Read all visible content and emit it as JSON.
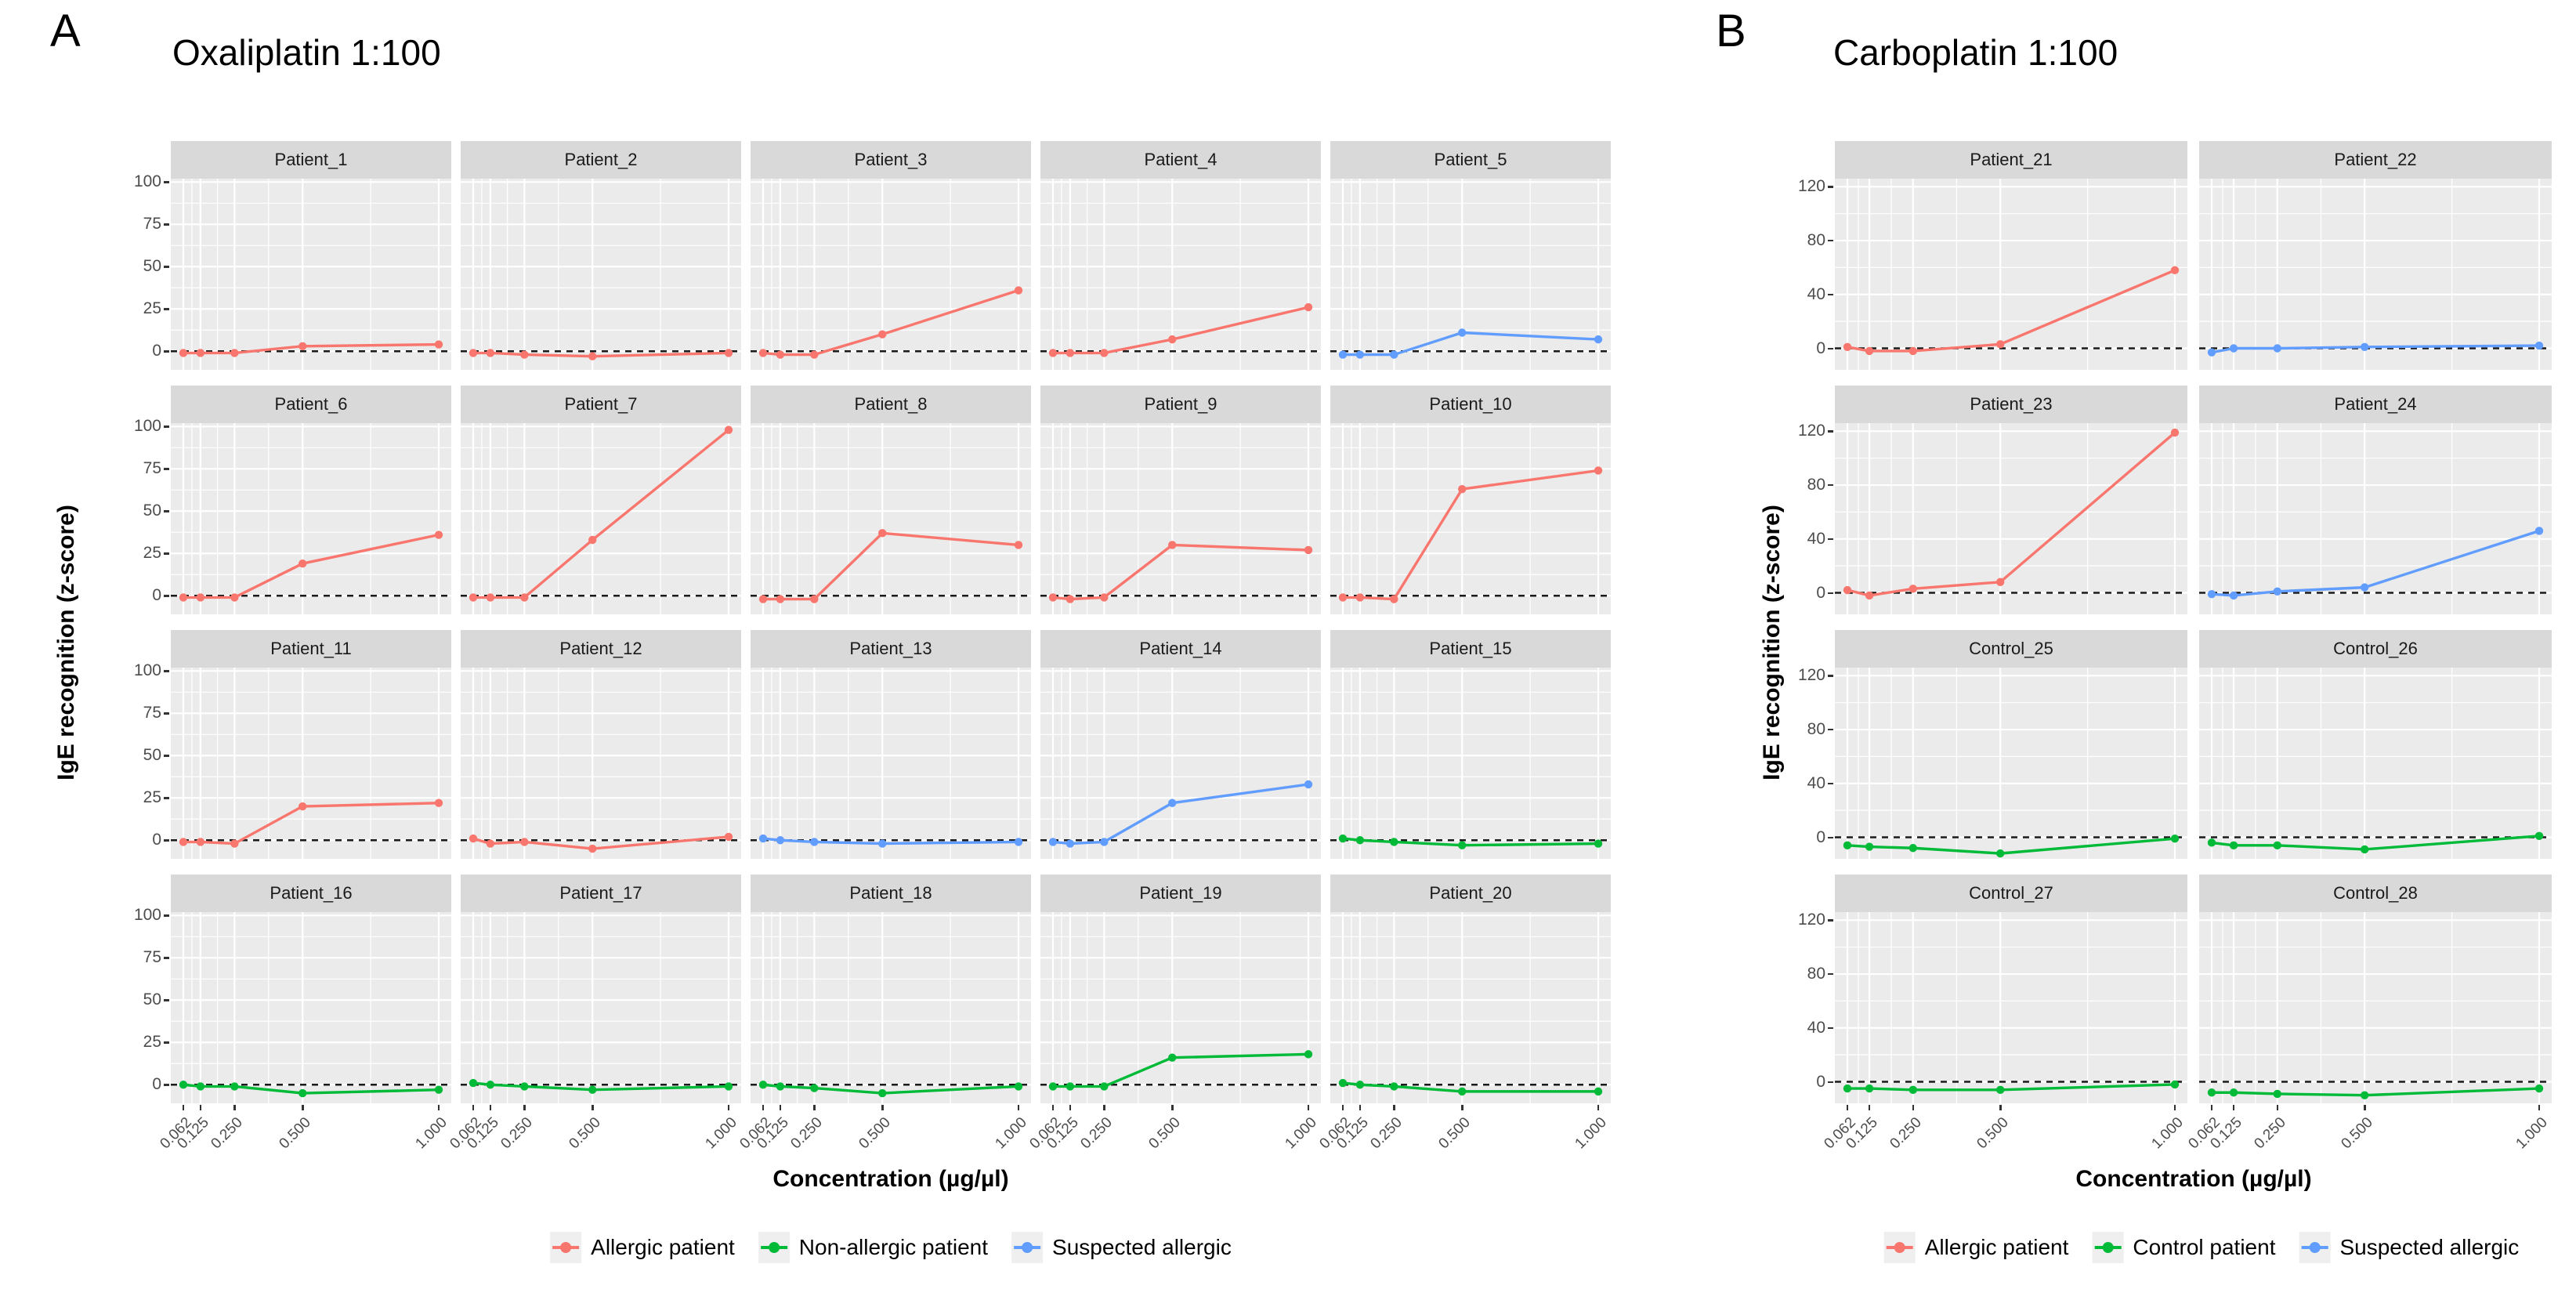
{
  "figure": {
    "panel_letters": [
      "A",
      "B"
    ]
  },
  "colors": {
    "allergic": "#F8766D",
    "non_allergic": "#00BA38",
    "suspected": "#619CFF",
    "zero_line": "#1a1a1a",
    "panel_bg": "#EBEBEB",
    "strip_bg": "#D9D9D9",
    "grid_line": "#FFFFFF",
    "tick_text": "#4d4d4d"
  },
  "chart_data": [
    {
      "type": "line",
      "panel_letter": "A",
      "title": "Oxaliplatin 1:100",
      "xlabel": "Concentration (µg/µl)",
      "ylabel": "IgE recognition (z-score)",
      "x": [
        0.062,
        0.125,
        0.25,
        0.5,
        1.0
      ],
      "x_tick_labels": [
        "0.062",
        "0.125",
        "0.250",
        "0.500",
        "1.000"
      ],
      "y_ticks": [
        0,
        25,
        50,
        75,
        100
      ],
      "y_minor": [
        12.5,
        37.5,
        62.5,
        87.5
      ],
      "ylim": [
        -11,
        102
      ],
      "grid": "on",
      "legend_position": "bottom",
      "zero_line": 0,
      "facet_cols": 5,
      "facets": [
        {
          "name": "Patient_1",
          "group": "allergic",
          "values": [
            -1,
            -1,
            -1,
            3,
            4
          ]
        },
        {
          "name": "Patient_2",
          "group": "allergic",
          "values": [
            -1,
            -1,
            -2,
            -3,
            -1
          ]
        },
        {
          "name": "Patient_3",
          "group": "allergic",
          "values": [
            -1,
            -2,
            -2,
            10,
            36
          ]
        },
        {
          "name": "Patient_4",
          "group": "allergic",
          "values": [
            -1,
            -1,
            -1,
            7,
            26
          ]
        },
        {
          "name": "Patient_5",
          "group": "suspected",
          "values": [
            -2,
            -2,
            -2,
            11,
            7
          ]
        },
        {
          "name": "Patient_6",
          "group": "allergic",
          "values": [
            -1,
            -1,
            -1,
            19,
            36
          ]
        },
        {
          "name": "Patient_7",
          "group": "allergic",
          "values": [
            -1,
            -1,
            -1,
            33,
            98
          ]
        },
        {
          "name": "Patient_8",
          "group": "allergic",
          "values": [
            -2,
            -2,
            -2,
            37,
            30
          ]
        },
        {
          "name": "Patient_9",
          "group": "allergic",
          "values": [
            -1,
            -2,
            -1,
            30,
            27
          ]
        },
        {
          "name": "Patient_10",
          "group": "allergic",
          "values": [
            -1,
            -1,
            -2,
            63,
            74
          ]
        },
        {
          "name": "Patient_11",
          "group": "allergic",
          "values": [
            -1,
            -1,
            -2,
            20,
            22
          ]
        },
        {
          "name": "Patient_12",
          "group": "allergic",
          "values": [
            1,
            -2,
            -1,
            -5,
            2
          ]
        },
        {
          "name": "Patient_13",
          "group": "suspected",
          "values": [
            1,
            0,
            -1,
            -2,
            -1
          ]
        },
        {
          "name": "Patient_14",
          "group": "suspected",
          "values": [
            -1,
            -2,
            -1,
            22,
            33
          ]
        },
        {
          "name": "Patient_15",
          "group": "non_allergic",
          "values": [
            1,
            0,
            -1,
            -3,
            -2
          ]
        },
        {
          "name": "Patient_16",
          "group": "non_allergic",
          "values": [
            0,
            -1,
            -1,
            -5,
            -3
          ]
        },
        {
          "name": "Patient_17",
          "group": "non_allergic",
          "values": [
            1,
            0,
            -1,
            -3,
            -1
          ]
        },
        {
          "name": "Patient_18",
          "group": "non_allergic",
          "values": [
            0,
            -1,
            -2,
            -5,
            -1
          ]
        },
        {
          "name": "Patient_19",
          "group": "non_allergic",
          "values": [
            -1,
            -1,
            -1,
            16,
            18
          ]
        },
        {
          "name": "Patient_20",
          "group": "non_allergic",
          "values": [
            1,
            0,
            -1,
            -4,
            -4
          ]
        }
      ],
      "legend": [
        {
          "label": "Allergic patient",
          "group": "allergic"
        },
        {
          "label": "Non-allergic patient",
          "group": "non_allergic"
        },
        {
          "label": "Suspected allergic",
          "group": "suspected"
        }
      ]
    },
    {
      "type": "line",
      "panel_letter": "B",
      "title": "Carboplatin 1:100",
      "xlabel": "Concentration (µg/µl)",
      "ylabel": "IgE recognition (z-score)",
      "x": [
        0.062,
        0.125,
        0.25,
        0.5,
        1.0
      ],
      "x_tick_labels": [
        "0.062",
        "0.125",
        "0.250",
        "0.500",
        "1.000"
      ],
      "y_ticks": [
        0,
        40,
        80,
        120
      ],
      "y_minor": [
        20,
        60,
        100
      ],
      "ylim": [
        -16,
        126
      ],
      "grid": "on",
      "legend_position": "bottom",
      "zero_line": 0,
      "facet_cols": 2,
      "facets": [
        {
          "name": "Patient_21",
          "group": "allergic",
          "values": [
            1,
            -2,
            -2,
            3,
            58
          ]
        },
        {
          "name": "Patient_22",
          "group": "suspected",
          "values": [
            -3,
            0,
            0,
            1,
            2
          ]
        },
        {
          "name": "Patient_23",
          "group": "allergic",
          "values": [
            2,
            -2,
            3,
            8,
            119
          ]
        },
        {
          "name": "Patient_24",
          "group": "suspected",
          "values": [
            -1,
            -2,
            1,
            4,
            46
          ]
        },
        {
          "name": "Control_25",
          "group": "non_allergic",
          "values": [
            -6,
            -7,
            -8,
            -12,
            -1
          ]
        },
        {
          "name": "Control_26",
          "group": "non_allergic",
          "values": [
            -4,
            -6,
            -6,
            -9,
            1
          ]
        },
        {
          "name": "Control_27",
          "group": "non_allergic",
          "values": [
            -5,
            -5,
            -6,
            -6,
            -2
          ]
        },
        {
          "name": "Control_28",
          "group": "non_allergic",
          "values": [
            -8,
            -8,
            -9,
            -10,
            -5
          ]
        }
      ],
      "legend": [
        {
          "label": "Allergic patient",
          "group": "allergic"
        },
        {
          "label": "Control patient",
          "group": "non_allergic"
        },
        {
          "label": "Suspected allergic",
          "group": "suspected"
        }
      ]
    }
  ]
}
